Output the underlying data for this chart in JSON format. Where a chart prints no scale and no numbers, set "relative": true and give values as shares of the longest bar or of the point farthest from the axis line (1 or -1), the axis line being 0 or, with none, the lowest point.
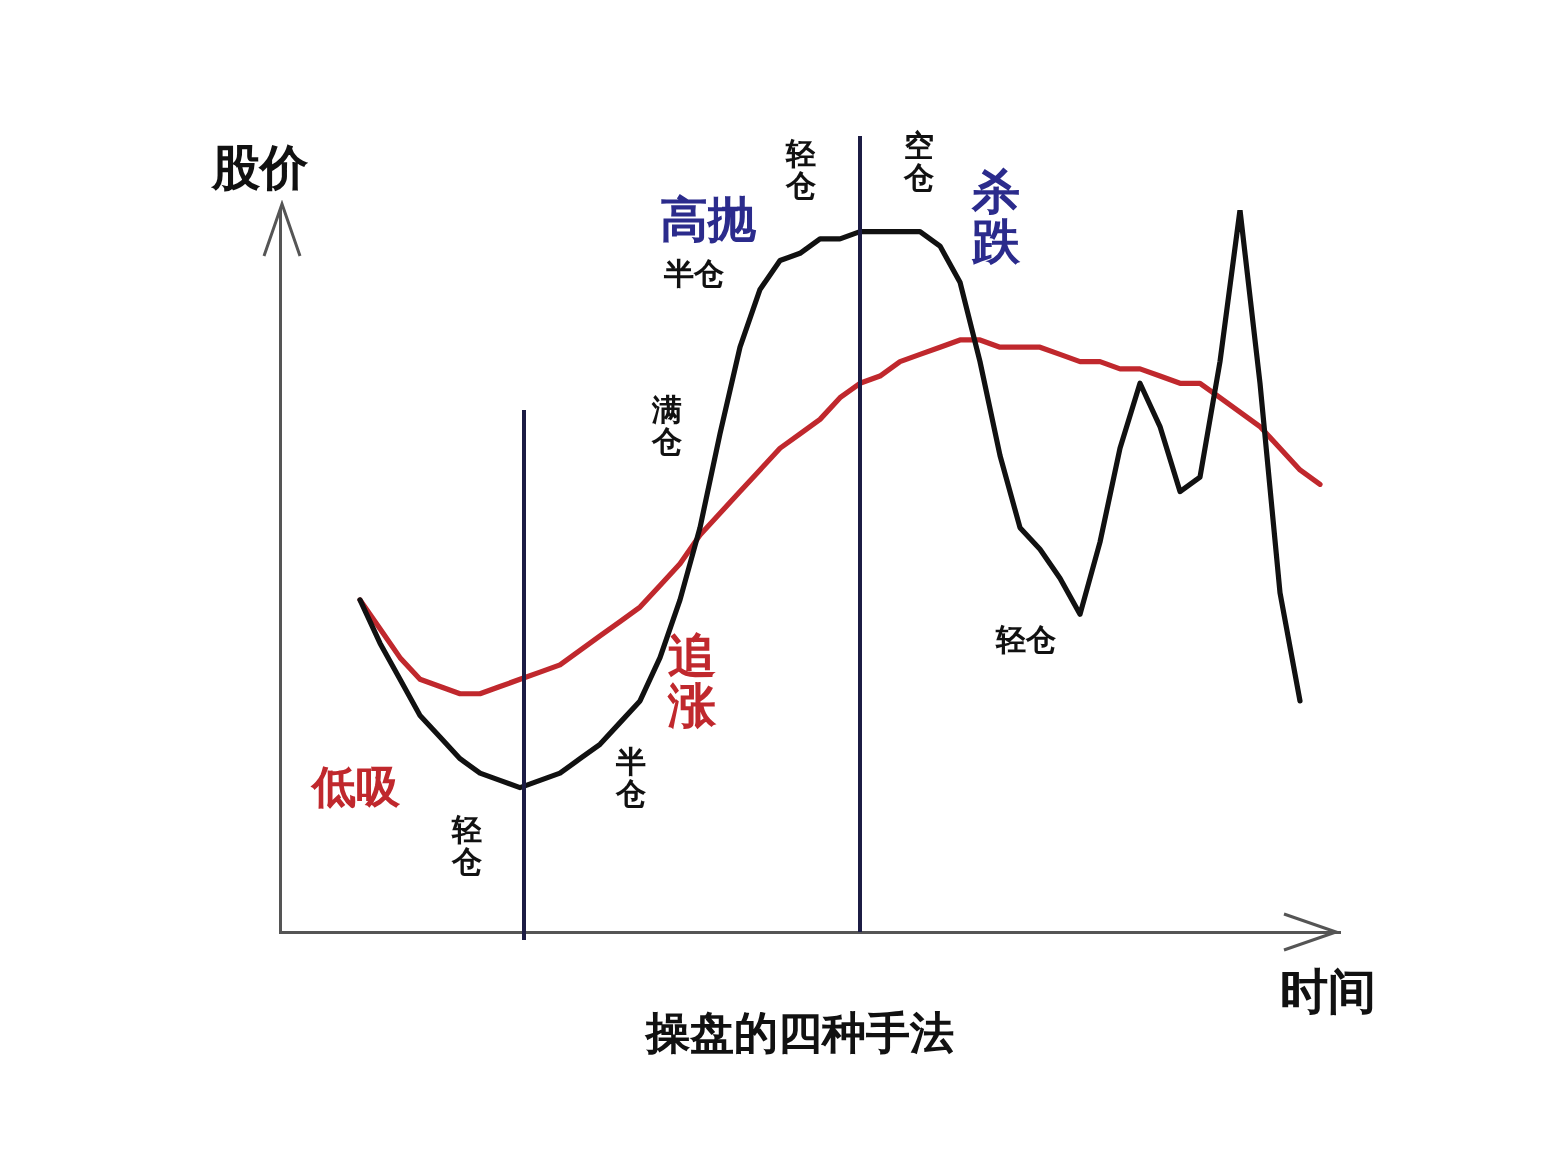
{
  "chart_data": {
    "type": "line",
    "title": "操盘的四种手法",
    "xlabel": "时间",
    "ylabel": "股价",
    "relative": true,
    "grid": false,
    "legend": false,
    "marker": "none",
    "line_style": "solid",
    "categories": [
      null,
      null,
      null,
      null,
      null,
      null,
      null,
      null,
      null,
      null,
      null,
      null,
      null,
      null,
      null,
      null,
      null,
      null,
      null,
      null,
      null,
      null,
      null,
      null,
      null,
      null,
      null,
      null,
      null,
      null,
      null,
      null,
      null,
      null,
      null,
      null,
      null,
      null,
      null,
      null,
      null,
      null,
      null,
      null,
      null,
      null,
      null,
      null,
      null,
      null,
      null,
      null,
      null,
      null
    ],
    "series": [
      {
        "color": "#111111",
        "values": [
          null,
          null,
          null,
          null,
          0.46,
          0.4,
          0.35,
          0.3,
          0.27,
          0.24,
          0.22,
          0.21,
          0.2,
          0.21,
          0.22,
          0.24,
          0.26,
          0.29,
          0.32,
          0.38,
          0.46,
          0.56,
          0.69,
          0.81,
          0.89,
          0.93,
          0.94,
          0.96,
          0.96,
          0.97,
          0.97,
          0.97,
          0.97,
          0.95,
          0.9,
          0.79,
          0.66,
          0.56,
          0.53,
          0.49,
          0.44,
          0.54,
          0.67,
          0.76,
          0.7,
          0.61,
          0.63,
          0.79,
          1.0,
          0.76,
          0.47,
          0.32,
          null,
          null
        ]
      },
      {
        "color": "#c0282d",
        "values": [
          null,
          null,
          null,
          null,
          0.46,
          0.42,
          0.38,
          0.35,
          0.34,
          0.33,
          0.33,
          0.34,
          0.35,
          0.36,
          0.37,
          0.39,
          0.41,
          0.43,
          0.45,
          0.48,
          0.51,
          0.55,
          0.58,
          0.61,
          0.64,
          0.67,
          0.69,
          0.71,
          0.74,
          0.76,
          0.77,
          0.79,
          0.8,
          0.81,
          0.82,
          0.82,
          0.81,
          0.81,
          0.81,
          0.8,
          0.79,
          0.79,
          0.78,
          0.78,
          0.77,
          0.76,
          0.76,
          0.74,
          0.72,
          0.7,
          0.67,
          0.64,
          0.62,
          null
        ]
      }
    ],
    "annotations": [
      "低吸",
      "轻仓",
      "半仓",
      "追涨",
      "满仓",
      "高抛",
      "半仓",
      "轻仓",
      "空仓",
      "杀跌",
      "轻仓"
    ]
  }
}
